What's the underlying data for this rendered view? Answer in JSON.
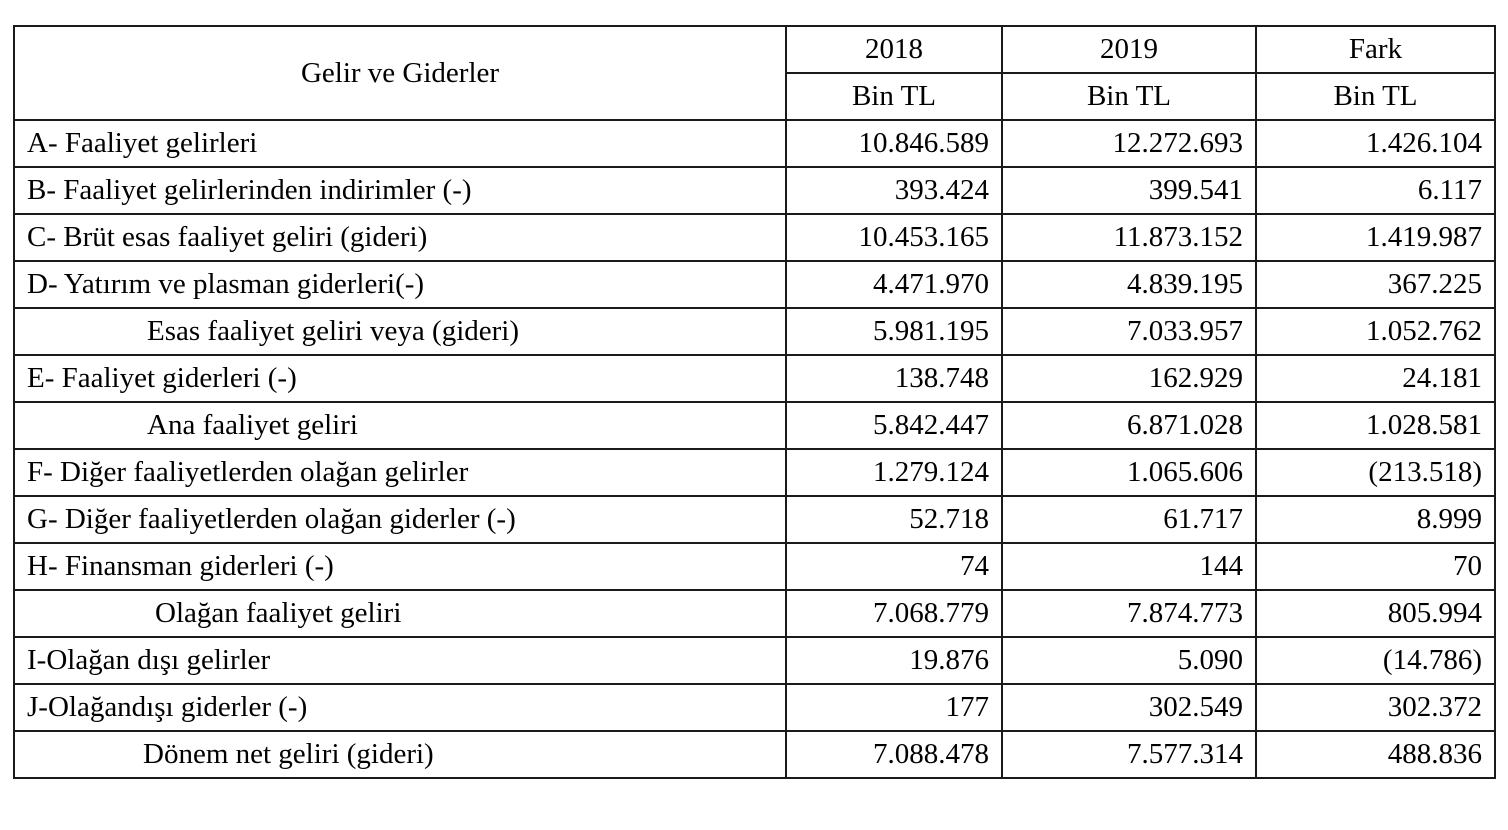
{
  "table": {
    "header": {
      "label": "Gelir ve Giderler",
      "years": [
        "2018",
        "2019",
        "Fark"
      ],
      "unit": "Bin TL"
    },
    "rows": [
      {
        "label": "A- Faaliyet gelirleri",
        "y2018": "10.846.589",
        "y2019": "12.272.693",
        "fark": "1.426.104"
      },
      {
        "label": "B- Faaliyet gelirlerinden indirimler (-)",
        "y2018": "393.424",
        "y2019": "399.541",
        "fark": "6.117"
      },
      {
        "label": "C- Brüt esas faaliyet geliri (gideri)",
        "y2018": "10.453.165",
        "y2019": "11.873.152",
        "fark": "1.419.987"
      },
      {
        "label": "D- Yatırım ve plasman giderleri(-)",
        "y2018": "4.471.970",
        "y2019": "4.839.195",
        "fark": "367.225"
      },
      {
        "label": "Esas faaliyet geliri veya (gideri)",
        "y2018": "5.981.195",
        "y2019": "7.033.957",
        "fark": "1.052.762"
      },
      {
        "label": "E- Faaliyet giderleri (-)",
        "y2018": "138.748",
        "y2019": "162.929",
        "fark": "24.181"
      },
      {
        "label": "Ana faaliyet geliri",
        "y2018": "5.842.447",
        "y2019": "6.871.028",
        "fark": "1.028.581"
      },
      {
        "label": "F- Diğer faaliyetlerden olağan gelirler",
        "y2018": "1.279.124",
        "y2019": "1.065.606",
        "fark": "(213.518)"
      },
      {
        "label": "G- Diğer faaliyetlerden olağan giderler (-)",
        "y2018": "52.718",
        "y2019": "61.717",
        "fark": "8.999"
      },
      {
        "label": "H- Finansman giderleri (-)",
        "y2018": "74",
        "y2019": "144",
        "fark": "70"
      },
      {
        "label": "Olağan faaliyet geliri",
        "y2018": "7.068.779",
        "y2019": "7.874.773",
        "fark": "805.994"
      },
      {
        "label": "I-Olağan dışı gelirler",
        "y2018": "19.876",
        "y2019": "5.090",
        "fark": "(14.786)"
      },
      {
        "label": "J-Olağandışı giderler (-)",
        "y2018": "177",
        "y2019": "302.549",
        "fark": "302.372"
      },
      {
        "label": "Dönem net geliri (gideri)",
        "y2018": "7.088.478",
        "y2019": "7.577.314",
        "fark": "488.836"
      }
    ]
  }
}
